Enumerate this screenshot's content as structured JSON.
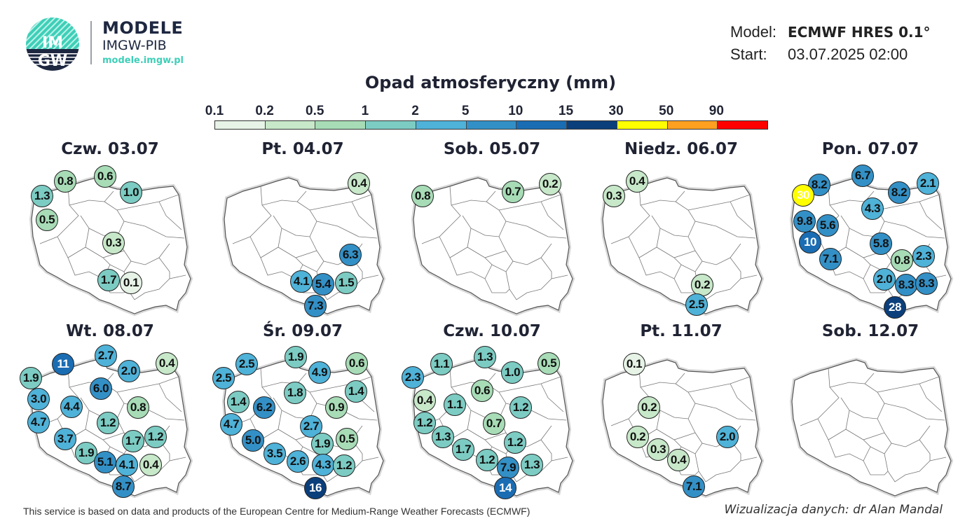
{
  "header": {
    "logo_text_top": "IM",
    "logo_text_bottom": "GW",
    "brand_title": "MODELE",
    "brand_subtitle": "IMGW-PIB",
    "brand_url": "modele.imgw.pl",
    "model_label": "Model:",
    "model_value": "ECMWF HRES 0.1°",
    "start_label": "Start:",
    "start_value": "03.07.2025 02:00"
  },
  "legend": {
    "title": "Opad atmosferyczny (mm)",
    "ticks": [
      "0.1",
      "0.2",
      "0.5",
      "1",
      "2",
      "5",
      "10",
      "15",
      "30",
      "50",
      "90"
    ],
    "colors": [
      "#e6f3e6",
      "#c7e8c9",
      "#a7dcb6",
      "#7cccc3",
      "#4fb2d8",
      "#3390c6",
      "#1a6db3",
      "#0b3f7c",
      "#ffff00",
      "#ffa020",
      "#ff0000"
    ]
  },
  "maps": [
    {
      "title": "Czw. 03.07",
      "values": [
        "1.3",
        "0.8",
        "0.6",
        "1.0",
        "0.5",
        "0.3",
        "1.7",
        "0.1"
      ]
    },
    {
      "title": "Pt. 04.07",
      "values": [
        "0.4",
        "6.3",
        "4.1",
        "5.4",
        "1.5",
        "7.3"
      ]
    },
    {
      "title": "Sob. 05.07",
      "values": [
        "0.8",
        "0.7",
        "0.2"
      ]
    },
    {
      "title": "Niedz. 06.07",
      "values": [
        "0.3",
        "0.4",
        "0.2",
        "2.5"
      ]
    },
    {
      "title": "Pon. 07.07",
      "values": [
        "8.2",
        "6.7",
        "8.2",
        "2.1",
        "30",
        "4.3",
        "9.8",
        "5.6",
        "10",
        "5.8",
        "7.1",
        "0.8",
        "2.3",
        "2.0",
        "8.3",
        "8.3",
        "28"
      ]
    },
    {
      "title": "Wt. 08.07",
      "values": [
        "11",
        "2.7",
        "1.9",
        "2.0",
        "0.4",
        "6.0",
        "3.0",
        "4.4",
        "0.8",
        "4.7",
        "1.2",
        "3.7",
        "1.7",
        "1.2",
        "1.9",
        "5.1",
        "4.1",
        "0.4",
        "8.7"
      ]
    },
    {
      "title": "Śr. 09.07",
      "values": [
        "2.5",
        "1.9",
        "2.5",
        "4.9",
        "0.6",
        "1.8",
        "1.4",
        "1.4",
        "6.2",
        "0.9",
        "4.7",
        "2.7",
        "5.0",
        "1.9",
        "0.5",
        "3.5",
        "2.6",
        "4.3",
        "1.2",
        "16"
      ]
    },
    {
      "title": "Czw. 10.07",
      "values": [
        "1.1",
        "1.3",
        "2.3",
        "1.0",
        "0.5",
        "0.6",
        "0.4",
        "1.1",
        "1.2",
        "1.2",
        "0.7",
        "1.3",
        "1.2",
        "1.7",
        "1.2",
        "7.9",
        "1.3",
        "14"
      ]
    },
    {
      "title": "Pt. 11.07",
      "values": [
        "0.1",
        "0.2",
        "0.2",
        "0.3",
        "0.4",
        "2.0",
        "7.1"
      ]
    },
    {
      "title": "Sob. 12.07",
      "values": []
    }
  ],
  "footer": {
    "attribution": "This service is based on data and products of the European Centre for Medium-Range Weather Forecasts (ECMWF)",
    "credit": "Wizualizacja danych: dr Alan Mandal"
  }
}
